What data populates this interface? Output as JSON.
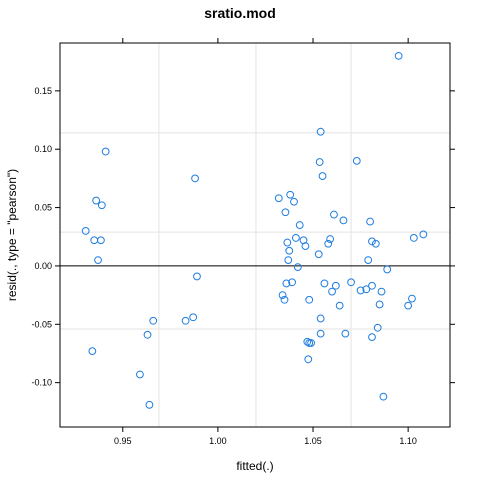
{
  "chart_data": {
    "type": "scatter",
    "title": "sratio.mod",
    "xlabel": "fitted(.)",
    "ylabel": "resid(., type = \"pearson\")",
    "xlim": [
      0.917,
      1.122
    ],
    "ylim": [
      -0.138,
      0.191
    ],
    "x_ticks": [
      0.95,
      1.0,
      1.05,
      1.1
    ],
    "x_tick_labels": [
      "0.95",
      "1.00",
      "1.05",
      "1.10"
    ],
    "y_ticks": [
      -0.1,
      -0.05,
      0.0,
      0.05,
      0.1,
      0.15
    ],
    "y_tick_labels": [
      "-0.10",
      "-0.05",
      "0.00",
      "0.05",
      "0.10",
      "0.15"
    ],
    "reference_line_y": 0.0,
    "grid_x": [
      0.969,
      1.02,
      1.07
    ],
    "grid_y": [
      -0.054,
      0.029,
      0.114
    ],
    "colors": {
      "points": "#1f7de0",
      "grid": "#e3e3e3",
      "reference": "#000000",
      "frame": "#000000"
    },
    "points": [
      {
        "x": 0.9305,
        "y": 0.03
      },
      {
        "x": 0.934,
        "y": -0.073
      },
      {
        "x": 0.935,
        "y": 0.022
      },
      {
        "x": 0.936,
        "y": 0.056
      },
      {
        "x": 0.937,
        "y": 0.005
      },
      {
        "x": 0.9385,
        "y": 0.022
      },
      {
        "x": 0.939,
        "y": 0.052
      },
      {
        "x": 0.941,
        "y": 0.098
      },
      {
        "x": 0.959,
        "y": -0.093
      },
      {
        "x": 0.963,
        "y": -0.059
      },
      {
        "x": 0.964,
        "y": -0.119
      },
      {
        "x": 0.966,
        "y": -0.047
      },
      {
        "x": 0.983,
        "y": -0.047
      },
      {
        "x": 0.987,
        "y": -0.044
      },
      {
        "x": 0.988,
        "y": 0.075
      },
      {
        "x": 0.989,
        "y": -0.009
      },
      {
        "x": 1.032,
        "y": 0.058
      },
      {
        "x": 1.034,
        "y": -0.025
      },
      {
        "x": 1.035,
        "y": -0.029
      },
      {
        "x": 1.0355,
        "y": 0.046
      },
      {
        "x": 1.036,
        "y": -0.015
      },
      {
        "x": 1.0365,
        "y": 0.02
      },
      {
        "x": 1.037,
        "y": 0.005
      },
      {
        "x": 1.0375,
        "y": 0.013
      },
      {
        "x": 1.038,
        "y": 0.061
      },
      {
        "x": 1.039,
        "y": -0.014
      },
      {
        "x": 1.04,
        "y": 0.055
      },
      {
        "x": 1.041,
        "y": 0.024
      },
      {
        "x": 1.042,
        "y": -0.001
      },
      {
        "x": 1.043,
        "y": 0.035
      },
      {
        "x": 1.045,
        "y": 0.022
      },
      {
        "x": 1.046,
        "y": 0.017
      },
      {
        "x": 1.047,
        "y": -0.065
      },
      {
        "x": 1.0475,
        "y": -0.08
      },
      {
        "x": 1.048,
        "y": -0.066
      },
      {
        "x": 1.048,
        "y": -0.029
      },
      {
        "x": 1.049,
        "y": -0.066
      },
      {
        "x": 1.053,
        "y": 0.01
      },
      {
        "x": 1.0535,
        "y": 0.089
      },
      {
        "x": 1.054,
        "y": 0.115
      },
      {
        "x": 1.054,
        "y": -0.045
      },
      {
        "x": 1.054,
        "y": -0.058
      },
      {
        "x": 1.055,
        "y": 0.077
      },
      {
        "x": 1.056,
        "y": -0.015
      },
      {
        "x": 1.058,
        "y": 0.019
      },
      {
        "x": 1.059,
        "y": 0.023
      },
      {
        "x": 1.06,
        "y": -0.022
      },
      {
        "x": 1.061,
        "y": 0.044
      },
      {
        "x": 1.062,
        "y": -0.017
      },
      {
        "x": 1.064,
        "y": -0.034
      },
      {
        "x": 1.066,
        "y": 0.039
      },
      {
        "x": 1.067,
        "y": -0.058
      },
      {
        "x": 1.07,
        "y": -0.014
      },
      {
        "x": 1.073,
        "y": 0.09
      },
      {
        "x": 1.075,
        "y": -0.021
      },
      {
        "x": 1.078,
        "y": -0.02
      },
      {
        "x": 1.079,
        "y": 0.005
      },
      {
        "x": 1.08,
        "y": 0.038
      },
      {
        "x": 1.081,
        "y": 0.021
      },
      {
        "x": 1.081,
        "y": -0.061
      },
      {
        "x": 1.081,
        "y": -0.017
      },
      {
        "x": 1.083,
        "y": 0.019
      },
      {
        "x": 1.084,
        "y": -0.053
      },
      {
        "x": 1.085,
        "y": -0.033
      },
      {
        "x": 1.086,
        "y": -0.022
      },
      {
        "x": 1.087,
        "y": -0.112
      },
      {
        "x": 1.089,
        "y": -0.003
      },
      {
        "x": 1.095,
        "y": 0.18
      },
      {
        "x": 1.1,
        "y": -0.034
      },
      {
        "x": 1.102,
        "y": -0.028
      },
      {
        "x": 1.103,
        "y": 0.024
      },
      {
        "x": 1.108,
        "y": 0.027
      }
    ]
  }
}
